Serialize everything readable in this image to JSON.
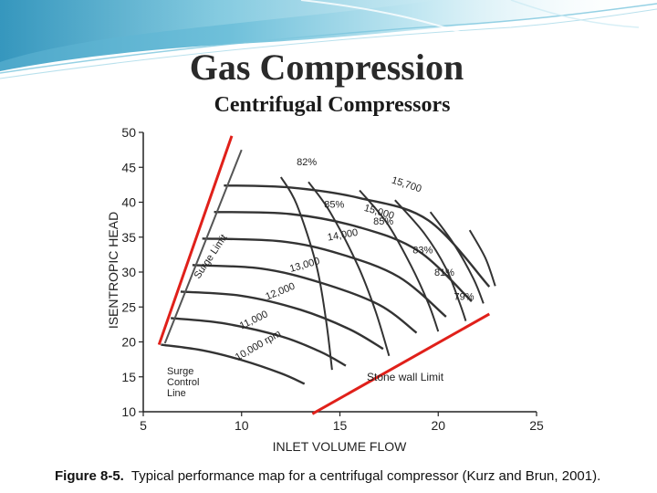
{
  "slide": {
    "title": "Gas Compression",
    "subtitle": "Centrifugal Compressors",
    "figure_number": "Figure 8-5.",
    "figure_caption": "Typical performance map for a centrifugal compressor (Kurz and Brun, 2001).",
    "colors": {
      "banner": "#5fb3cf",
      "limit_lines": "#e0201a",
      "curves": "#333333"
    }
  },
  "chart_data": {
    "type": "line",
    "xlabel": "INLET VOLUME FLOW",
    "ylabel": "ISENTROPIC HEAD",
    "xlim": [
      5,
      25
    ],
    "ylim": [
      10,
      50
    ],
    "xticks": [
      "5",
      "10",
      "15",
      "20",
      "25"
    ],
    "yticks": [
      "10",
      "15",
      "20",
      "25",
      "30",
      "35",
      "40",
      "45",
      "50"
    ],
    "grid": false,
    "speed_lines": [
      {
        "name": "10,000 rpm",
        "points": [
          [
            5.9,
            19.6
          ],
          [
            8,
            18.8
          ],
          [
            10,
            17.4
          ],
          [
            12,
            15.5
          ],
          [
            13.2,
            14.0
          ]
        ]
      },
      {
        "name": "11,000",
        "points": [
          [
            6.4,
            23.4
          ],
          [
            9,
            22.7
          ],
          [
            12,
            20.8
          ],
          [
            14,
            18.6
          ],
          [
            15.3,
            16.6
          ]
        ]
      },
      {
        "name": "12,000",
        "points": [
          [
            6.9,
            27.2
          ],
          [
            10,
            26.6
          ],
          [
            13,
            24.6
          ],
          [
            15.5,
            21.8
          ],
          [
            17.2,
            19.0
          ]
        ]
      },
      {
        "name": "13,000",
        "points": [
          [
            7.5,
            31.0
          ],
          [
            11,
            30.5
          ],
          [
            14,
            28.5
          ],
          [
            17,
            25.3
          ],
          [
            18.9,
            21.3
          ]
        ]
      },
      {
        "name": "14,000",
        "points": [
          [
            8.0,
            34.8
          ],
          [
            12,
            34.4
          ],
          [
            15,
            32.6
          ],
          [
            18,
            29.3
          ],
          [
            20.4,
            23.6
          ]
        ]
      },
      {
        "name": "15,000",
        "points": [
          [
            8.6,
            38.6
          ],
          [
            12.5,
            38.3
          ],
          [
            16,
            36.4
          ],
          [
            19,
            33.0
          ],
          [
            21.7,
            25.8
          ]
        ]
      },
      {
        "name": "15,700",
        "points": [
          [
            9.1,
            42.4
          ],
          [
            12.5,
            42.1
          ],
          [
            16,
            40.6
          ],
          [
            19.5,
            37.4
          ],
          [
            22.6,
            27.9
          ]
        ]
      }
    ],
    "efficiency_lines": [
      {
        "name": "82%",
        "points": [
          [
            12,
            43.6
          ],
          [
            12.8,
            39.7
          ],
          [
            13.8,
            31.0
          ],
          [
            14.3,
            23.0
          ],
          [
            14.6,
            16.0
          ]
        ]
      },
      {
        "name": "85%",
        "points": [
          [
            13.4,
            42.9
          ],
          [
            14.5,
            38.6
          ],
          [
            15.9,
            31.0
          ],
          [
            16.8,
            24.5
          ],
          [
            17.5,
            18.0
          ]
        ]
      },
      {
        "name": "85%",
        "points": [
          [
            16.0,
            41.7
          ],
          [
            17.4,
            37.0
          ],
          [
            18.6,
            31.0
          ],
          [
            19.5,
            25.5
          ],
          [
            20.0,
            21.5
          ]
        ]
      },
      {
        "name": "83%",
        "points": [
          [
            17.8,
            40.3
          ],
          [
            19.3,
            35.5
          ],
          [
            20.4,
            30.5
          ],
          [
            21.1,
            25.5
          ],
          [
            21.4,
            23.0
          ]
        ]
      },
      {
        "name": "81%",
        "points": [
          [
            19.6,
            38.6
          ],
          [
            20.8,
            34.0
          ],
          [
            21.8,
            29.0
          ],
          [
            22.3,
            25.5
          ]
        ]
      },
      {
        "name": "79%",
        "points": [
          [
            21.6,
            36.0
          ],
          [
            22.4,
            32.0
          ],
          [
            22.9,
            28.0
          ]
        ]
      }
    ],
    "surge_limit": {
      "name": "Surge Limit",
      "points": [
        [
          5.8,
          19.6
        ],
        [
          9.5,
          49.5
        ]
      ]
    },
    "surge_control_line": {
      "name": "Surge Control Line",
      "points": [
        [
          6.1,
          19.8
        ],
        [
          10.0,
          47.5
        ]
      ]
    },
    "stone_wall_limit": {
      "name": "Stone wall Limit",
      "points": [
        [
          13.6,
          9.7
        ],
        [
          22.6,
          24.0
        ]
      ]
    },
    "labels": [
      {
        "text": "82%",
        "x": 12.8,
        "y": 45.3,
        "angle": 0
      },
      {
        "text": "15,700",
        "x": 17.6,
        "y": 42.8,
        "angle": 18
      },
      {
        "text": "85%",
        "x": 14.2,
        "y": 39.2,
        "angle": 0
      },
      {
        "text": "15,000",
        "x": 16.2,
        "y": 38.8,
        "angle": 16
      },
      {
        "text": "85%",
        "x": 16.7,
        "y": 36.8,
        "angle": 0
      },
      {
        "text": "14,000",
        "x": 14.4,
        "y": 34.5,
        "angle": -10
      },
      {
        "text": "83%",
        "x": 18.7,
        "y": 32.7,
        "angle": 0
      },
      {
        "text": "13,000",
        "x": 12.5,
        "y": 30.0,
        "angle": -16
      },
      {
        "text": "81%",
        "x": 19.8,
        "y": 29.5,
        "angle": 0
      },
      {
        "text": "12,000",
        "x": 11.3,
        "y": 26.0,
        "angle": -22
      },
      {
        "text": "79%",
        "x": 20.8,
        "y": 26.0,
        "angle": 0
      },
      {
        "text": "11,000",
        "x": 10.0,
        "y": 21.8,
        "angle": -26
      },
      {
        "text": "10,000 rpm",
        "x": 9.8,
        "y": 17.3,
        "angle": -30
      }
    ],
    "annotations": {
      "surge_limit": "Surge Limit",
      "surge_control": [
        "Surge",
        "Control",
        "Line"
      ],
      "stone_wall": "Stone wall Limit"
    }
  }
}
